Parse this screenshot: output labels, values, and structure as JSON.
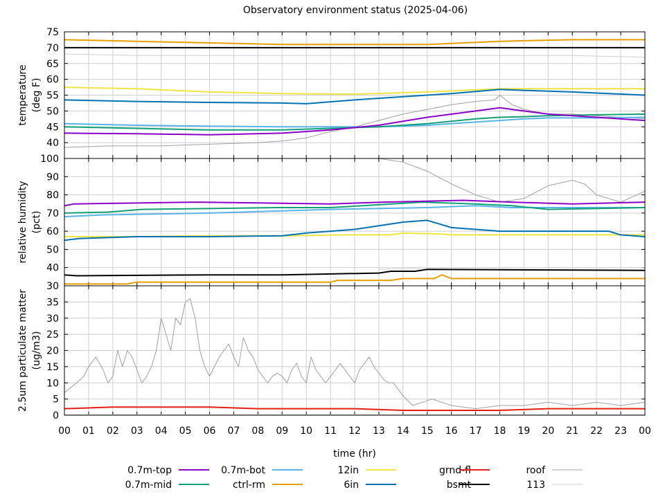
{
  "chart_data": {
    "type": "line",
    "title": "Observatory environment status (2025-04-06)",
    "xlabel": "time (hr)",
    "x_ticks": [
      "00",
      "01",
      "02",
      "03",
      "04",
      "05",
      "06",
      "07",
      "08",
      "09",
      "10",
      "11",
      "12",
      "13",
      "14",
      "15",
      "16",
      "17",
      "18",
      "19",
      "20",
      "21",
      "22",
      "23",
      "00"
    ],
    "xlim": [
      0,
      24
    ],
    "series_styles": [
      {
        "name": "0.7m-top",
        "color": "#8b00c8"
      },
      {
        "name": "0.7m-mid",
        "color": "#12a078"
      },
      {
        "name": "0.7m-bot",
        "color": "#56b4e9"
      },
      {
        "name": "ctrl-rm",
        "color": "#e69f00"
      },
      {
        "name": "12in",
        "color": "#f0e442"
      },
      {
        "name": "6in",
        "color": "#0072b2"
      },
      {
        "name": "grnd-fl",
        "color": "#e51e10"
      },
      {
        "name": "bsmt",
        "color": "#000000"
      },
      {
        "name": "roof",
        "color": "#a0a0a0"
      },
      {
        "name": "113",
        "color": "#d0d0d0"
      }
    ],
    "panels": [
      {
        "id": "temperature",
        "ylabel_line1": "temperature",
        "ylabel_line2": "(deg F)",
        "ylim": [
          35,
          75
        ],
        "y_ticks": [
          "40",
          "45",
          "50",
          "55",
          "60",
          "65",
          "70",
          "75"
        ],
        "y_tick_values": [
          40,
          45,
          50,
          55,
          60,
          65,
          70,
          75
        ],
        "series": [
          {
            "name": "0.7m-top",
            "x": [
              0,
              3,
              6,
              9,
              11,
              13,
              15,
              17,
              18,
              19,
              20,
              22,
              24
            ],
            "values": [
              43,
              42.8,
              42.5,
              43,
              44,
              45.5,
              48,
              50,
              51,
              50,
              49,
              48,
              47
            ]
          },
          {
            "name": "0.7m-mid",
            "x": [
              0,
              3,
              6,
              9,
              11,
              13,
              15,
              17,
              18,
              19,
              20,
              22,
              24
            ],
            "values": [
              45,
              44.5,
              44,
              44,
              44.5,
              45,
              46,
              47.5,
              48,
              48.2,
              48.5,
              48.8,
              49
            ]
          },
          {
            "name": "0.7m-bot",
            "x": [
              0,
              3,
              6,
              9,
              11,
              13,
              15,
              17,
              18,
              19,
              20,
              22,
              24
            ],
            "values": [
              46,
              45.5,
              45.2,
              45,
              45,
              45,
              45.5,
              46.5,
              47,
              47.5,
              47.8,
              47.8,
              48
            ]
          },
          {
            "name": "ctrl-rm",
            "x": [
              0,
              3,
              6,
              9,
              12,
              15,
              18,
              21,
              24
            ],
            "values": [
              72.5,
              72,
              71.5,
              71,
              71,
              71,
              72,
              72.5,
              72.5
            ]
          },
          {
            "name": "12in",
            "x": [
              0,
              3,
              6,
              9,
              12,
              15,
              18,
              21,
              24
            ],
            "values": [
              57.5,
              57,
              56,
              55.5,
              55.3,
              56,
              57,
              57,
              57
            ]
          },
          {
            "name": "6in",
            "x": [
              0,
              3,
              6,
              9,
              10,
              12,
              14,
              16,
              18,
              19,
              21,
              24
            ],
            "values": [
              53.5,
              53,
              52.7,
              52.5,
              52.3,
              53.5,
              54.5,
              55.5,
              56.8,
              56.5,
              56,
              55
            ]
          },
          {
            "name": "bsmt",
            "x": [
              0,
              3,
              6,
              9,
              12,
              15,
              18,
              21,
              24
            ],
            "values": [
              70,
              70,
              70,
              70,
              70,
              70,
              70,
              70,
              70
            ]
          },
          {
            "name": "roof",
            "x": [
              0,
              2,
              4,
              6,
              8,
              9,
              10,
              11,
              12,
              13,
              14,
              15,
              16,
              17,
              17.8,
              18,
              18.5,
              19,
              20,
              21,
              22,
              23,
              24
            ],
            "values": [
              38.5,
              39,
              39,
              39.5,
              40,
              40.5,
              41.5,
              43.5,
              45,
              47,
              49,
              50.5,
              52,
              53,
              53.5,
              55,
              52,
              50.5,
              49,
              49,
              48.5,
              48,
              47.5
            ]
          },
          {
            "name": "113",
            "x": [
              0,
              3,
              6,
              9,
              12,
              15,
              18,
              21,
              24
            ],
            "values": [
              68,
              67.5,
              67.5,
              67.5,
              67.5,
              67.5,
              67.5,
              67.5,
              67
            ]
          }
        ]
      },
      {
        "id": "humidity",
        "ylabel_line1": "relative humidity",
        "ylabel_line2": "(pct)",
        "ylim": [
          30,
          100
        ],
        "y_ticks": [
          "30",
          "40",
          "50",
          "60",
          "70",
          "80",
          "90",
          "100"
        ],
        "y_tick_values": [
          30,
          40,
          50,
          60,
          70,
          80,
          90,
          100
        ],
        "series": [
          {
            "name": "0.7m-top",
            "x": [
              0,
              0.4,
              5.5,
              11,
              13.2,
              16.5,
              18.5,
              21,
              24
            ],
            "values": [
              74,
              75,
              76,
              75,
              76,
              77,
              76,
              75,
              76
            ]
          },
          {
            "name": "0.7m-mid",
            "x": [
              0,
              1.8,
              3.2,
              8.8,
              11,
              14.8,
              17,
              18.5,
              20,
              24
            ],
            "values": [
              70,
              70.5,
              72,
              73,
              73,
              76,
              75,
              74,
              72,
              73
            ]
          },
          {
            "name": "0.7m-bot",
            "x": [
              0,
              1.6,
              6,
              11,
              15,
              17,
              18.5,
              20,
              24
            ],
            "values": [
              68,
              69,
              70,
              72,
              73,
              74,
              73,
              73,
              73
            ]
          },
          {
            "name": "ctrl-rm",
            "x": [
              0,
              2.6,
              3,
              11,
              11.3,
              13.5,
              14,
              15.3,
              15.6,
              16,
              24
            ],
            "values": [
              31,
              31,
              32,
              32,
              33,
              33,
              34,
              34,
              36,
              34,
              34
            ]
          },
          {
            "name": "12in",
            "x": [
              0,
              3,
              6,
              9,
              12,
              13.5,
              14,
              15.5,
              16,
              24
            ],
            "values": [
              57,
              57,
              57.5,
              57.5,
              58,
              58,
              59,
              58.5,
              58,
              58
            ]
          },
          {
            "name": "6in",
            "x": [
              0,
              0.6,
              3,
              6,
              9,
              10,
              12,
              13,
              14,
              15,
              15.5,
              16,
              18,
              19,
              20,
              22.5,
              23,
              24
            ],
            "values": [
              55,
              56,
              57,
              57,
              57.5,
              59,
              61,
              63,
              65,
              66,
              64,
              62,
              60,
              60,
              60,
              60,
              58,
              57
            ]
          },
          {
            "name": "bsmt",
            "x": [
              0,
              0.5,
              6,
              9,
              13,
              13.5,
              14.5,
              15,
              24
            ],
            "values": [
              36,
              35.5,
              36,
              36,
              37,
              38,
              38,
              39,
              38.5
            ]
          },
          {
            "name": "roof",
            "x": [
              13,
              14,
              15,
              16,
              17,
              17.5,
              18,
              19,
              20,
              21,
              21.5,
              22,
              23,
              24
            ],
            "values": [
              100,
              98,
              93,
              86,
              80,
              78,
              76,
              78,
              85,
              88,
              86,
              80,
              76,
              82
            ]
          },
          {
            "name": "113",
            "x": [
              13,
              14,
              15,
              16,
              18,
              20,
              22,
              24
            ],
            "values": [
              39,
              39.5,
              40,
              40,
              40,
              40,
              40,
              40
            ]
          }
        ]
      },
      {
        "id": "pm25",
        "ylabel_line1": "2.5um particulate matter",
        "ylabel_line2": "(ug/m3)",
        "ylim": [
          0,
          40
        ],
        "y_ticks": [
          "0",
          "5",
          "10",
          "15",
          "20",
          "25",
          "30",
          "35"
        ],
        "y_tick_values": [
          0,
          5,
          10,
          15,
          20,
          25,
          30,
          35
        ],
        "series": [
          {
            "name": "roof",
            "x": [
              0,
              0.5,
              0.8,
              1,
              1.3,
              1.6,
              1.8,
              2,
              2.2,
              2.4,
              2.6,
              2.8,
              3,
              3.2,
              3.4,
              3.6,
              3.8,
              4,
              4.2,
              4.4,
              4.6,
              4.8,
              5,
              5.2,
              5.4,
              5.6,
              5.8,
              6,
              6.2,
              6.4,
              6.6,
              6.8,
              7,
              7.2,
              7.4,
              7.6,
              7.8,
              8,
              8.2,
              8.4,
              8.6,
              8.8,
              9,
              9.2,
              9.4,
              9.6,
              9.8,
              10,
              10.2,
              10.4,
              10.6,
              10.8,
              11,
              11.2,
              11.4,
              11.6,
              11.8,
              12,
              12.2,
              12.4,
              12.6,
              12.8,
              13,
              13.2,
              13.4,
              13.6,
              13.8,
              14,
              14.4,
              14.8,
              15.2,
              15.6,
              16,
              17,
              18,
              19,
              20,
              21,
              22,
              23,
              24
            ],
            "values": [
              7,
              10,
              12,
              15,
              18,
              14,
              10,
              12,
              20,
              15,
              20,
              18,
              14,
              10,
              12,
              15,
              20,
              30,
              25,
              20,
              30,
              28,
              35,
              36,
              30,
              20,
              15,
              12,
              15,
              18,
              20,
              22,
              18,
              15,
              24,
              20,
              18,
              14,
              12,
              10,
              12,
              13,
              12,
              10,
              14,
              16,
              12,
              10,
              18,
              14,
              12,
              10,
              12,
              14,
              16,
              14,
              12,
              10,
              14,
              16,
              18,
              15,
              13,
              11,
              10,
              10,
              8,
              6,
              3,
              4,
              5,
              4,
              3,
              2,
              3,
              3,
              4,
              3,
              4,
              3,
              4
            ]
          },
          {
            "name": "grnd-fl",
            "x": [
              0,
              2,
              4,
              6,
              8,
              10,
              12,
              14,
              16,
              18,
              20,
              22,
              24
            ],
            "values": [
              2,
              2.5,
              2.5,
              2.5,
              2,
              2,
              2,
              1.5,
              1.5,
              1.5,
              2,
              2,
              2
            ]
          },
          {
            "name": "113",
            "x": [
              0,
              24
            ],
            "values": [
              0.2,
              0.2
            ]
          }
        ]
      }
    ],
    "legend": {
      "placement": "bottom",
      "entries": [
        "0.7m-top",
        "0.7m-bot",
        "12in",
        "grnd-fl",
        "roof",
        "0.7m-mid",
        "ctrl-rm",
        "6in",
        "bsmt",
        "113"
      ]
    }
  }
}
